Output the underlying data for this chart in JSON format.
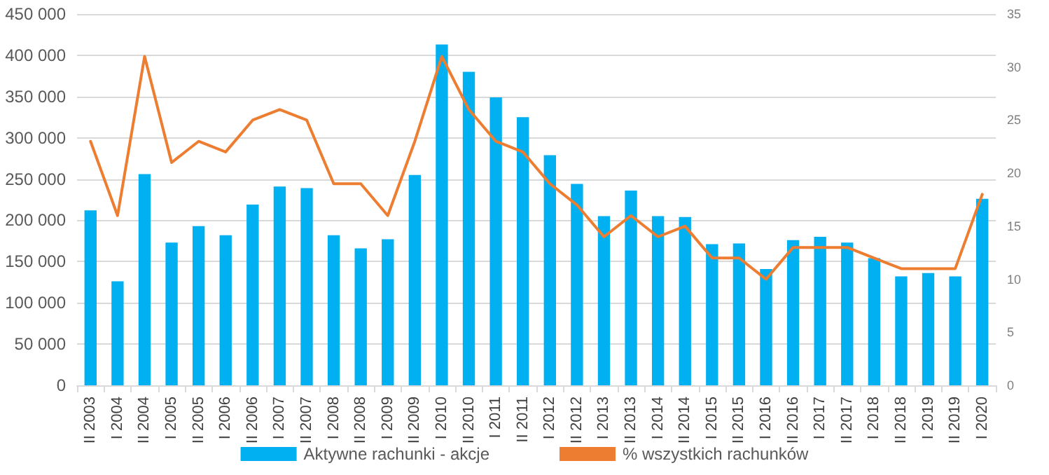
{
  "chart_data": {
    "type": "bar",
    "categories": [
      "II 2003",
      "I 2004",
      "II 2004",
      "I 2005",
      "II 2005",
      "I 2006",
      "II 2006",
      "I 2007",
      "II 2007",
      "I 2008",
      "II 2008",
      "I 2009",
      "II 2009",
      "I 2010",
      "II 2010",
      "I 2011",
      "II 2011",
      "I 2012",
      "II 2012",
      "I 2013",
      "II 2013",
      "I 2014",
      "II 2014",
      "I 2015",
      "II 2015",
      "I 2016",
      "II 2016",
      "I 2017",
      "II 2017",
      "I 2018",
      "II 2018",
      "I 2019",
      "II 2019",
      "I 2020"
    ],
    "series": [
      {
        "name": "Aktywne rachunki - akcje",
        "color": "#00b0f0",
        "values": [
          212000,
          126000,
          256000,
          173000,
          193000,
          182000,
          219000,
          241000,
          239000,
          182000,
          166000,
          177000,
          255000,
          413000,
          380000,
          349000,
          325000,
          279000,
          244000,
          205000,
          236000,
          205000,
          204000,
          171000,
          172000,
          141000,
          176000,
          180000,
          173000,
          154000,
          132000,
          136000,
          132000,
          226000
        ]
      },
      {
        "name": "% wszystkich rachunków",
        "type": "line",
        "axis": "y2",
        "color": "#ed7d31",
        "values": [
          23,
          16,
          31,
          21,
          23,
          22,
          25,
          26,
          25,
          19,
          19,
          16,
          23,
          31,
          26,
          23,
          22,
          19,
          17,
          14,
          16,
          14,
          15,
          12,
          12,
          10,
          13,
          13,
          13,
          12,
          11,
          11,
          11,
          18
        ]
      }
    ],
    "ylim": [
      0,
      450000
    ],
    "yticks": [
      {
        "value": 0,
        "label": "0"
      },
      {
        "value": 50000,
        "label": "50 000"
      },
      {
        "value": 100000,
        "label": "100 000"
      },
      {
        "value": 150000,
        "label": "150 000"
      },
      {
        "value": 200000,
        "label": "200 000"
      },
      {
        "value": 250000,
        "label": "250 000"
      },
      {
        "value": 300000,
        "label": "300 000"
      },
      {
        "value": 350000,
        "label": "350 000"
      },
      {
        "value": 400000,
        "label": "400 000"
      },
      {
        "value": 450000,
        "label": "450 000"
      }
    ],
    "y2lim": [
      0,
      35
    ],
    "y2ticks": [
      0,
      5,
      10,
      15,
      20,
      25,
      30,
      35
    ],
    "grid": "y",
    "legend": "bottom",
    "marker": "none",
    "line_style": "solid"
  }
}
